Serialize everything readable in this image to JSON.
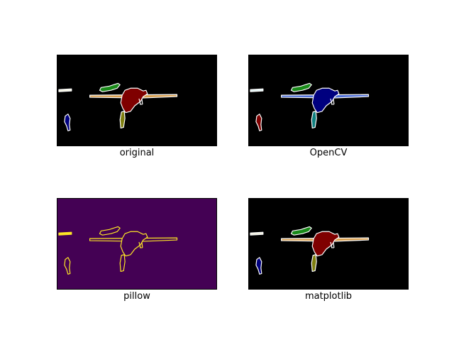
{
  "figure": {
    "panels": [
      {
        "caption": "original",
        "background": "#000000",
        "fills": {
          "ski": "#f2f2e0",
          "plane": "#7f0000",
          "arms": "#d9a050",
          "tail": "#1a8a1a",
          "leg": "#7f7f10",
          "person": "#00007f"
        }
      },
      {
        "caption": "OpenCV",
        "background": "#000000",
        "fills": {
          "ski": "#e0f2f2",
          "plane": "#00007f",
          "arms": "#5070d9",
          "tail": "#1a8a1a",
          "leg": "#108080",
          "person": "#7f0000"
        }
      },
      {
        "caption": "pillow",
        "background": "#440154",
        "fills": {
          "ski": "#fde725",
          "plane": "#440154",
          "arms": "#440154",
          "tail": "#440154",
          "leg": "#440154",
          "person": "#440154"
        },
        "outline": "#fde725"
      },
      {
        "caption": "matplotlib",
        "background": "#000000",
        "fills": {
          "ski": "#f2f2e0",
          "plane": "#7f0000",
          "arms": "#d9a050",
          "tail": "#1a8a1a",
          "leg": "#7f7f10",
          "person": "#00007f"
        }
      }
    ]
  }
}
